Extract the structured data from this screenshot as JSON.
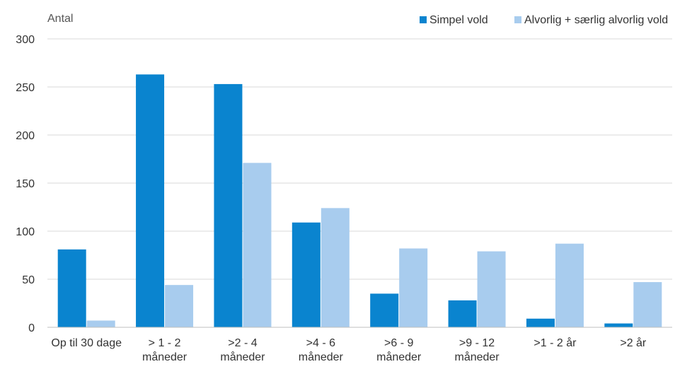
{
  "chart_data": {
    "type": "bar",
    "title": "",
    "ylabel": "Antal",
    "xlabel": "",
    "ylim": [
      0,
      300
    ],
    "yticks": [
      0,
      50,
      100,
      150,
      200,
      250,
      300
    ],
    "grid": true,
    "legend_position": "top-right",
    "categories": [
      [
        "Op til 30 dage"
      ],
      [
        "> 1 - 2",
        "måneder"
      ],
      [
        ">2 - 4",
        "måneder"
      ],
      [
        ">4 - 6",
        "måneder"
      ],
      [
        ">6 - 9",
        "måneder"
      ],
      [
        ">9 - 12",
        "måneder"
      ],
      [
        ">1 - 2 år"
      ],
      [
        ">2 år"
      ]
    ],
    "series": [
      {
        "name": "Simpel vold",
        "color": "#0A84CF",
        "values": [
          81,
          263,
          253,
          109,
          35,
          28,
          9,
          4
        ]
      },
      {
        "name": "Alvorlig + særlig alvorlig vold",
        "color": "#A8CCEE",
        "values": [
          7,
          44,
          171,
          124,
          82,
          79,
          87,
          47
        ]
      }
    ]
  }
}
